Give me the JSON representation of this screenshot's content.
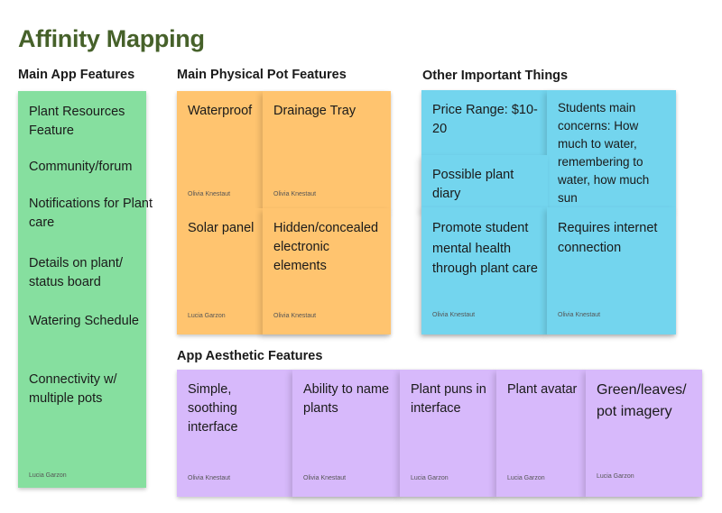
{
  "title": "Affinity Mapping",
  "sections": {
    "main_app": "Main App Features",
    "physical_pot": "Main Physical Pot Features",
    "other": "Other Important Things",
    "aesthetic": "App Aesthetic Features"
  },
  "main_app_note": {
    "items": [
      "Plant Resources Feature",
      "Community/forum",
      "Notifications for Plant care",
      "Details on plant/ status board",
      "Watering Schedule",
      "Connectivity w/ multiple pots"
    ],
    "author": "Lucia Garzon"
  },
  "physical_pot_notes": [
    {
      "text": "Waterproof",
      "author": "Olivia Knestaut"
    },
    {
      "text": "Drainage Tray",
      "author": "Olivia Knestaut"
    },
    {
      "text": "Solar panel",
      "author": "Lucia Garzon"
    },
    {
      "text": "Hidden/concealed electronic elements",
      "author": "Olivia Knestaut"
    }
  ],
  "other_notes": [
    {
      "text": "Price Range: $10-20",
      "author": ""
    },
    {
      "text": "Students main concerns: How much to water, remembering to water, how much sun",
      "author": ""
    },
    {
      "text": "Possible plant diary",
      "author": ""
    },
    {
      "text": "Promote student mental health through plant care",
      "author": "Olivia Knestaut"
    },
    {
      "text": "Requires internet connection",
      "author": "Olivia Knestaut"
    }
  ],
  "aesthetic_notes": [
    {
      "text": "Simple, soothing interface",
      "author": "Olivia Knestaut"
    },
    {
      "text": "Ability to name plants",
      "author": "Olivia Knestaut"
    },
    {
      "text": "Plant puns in interface",
      "author": "Lucia Garzon"
    },
    {
      "text": "Plant avatar",
      "author": "Lucia Garzon"
    },
    {
      "text": "Green/leaves/ pot imagery",
      "author": "Lucia Garzon"
    }
  ],
  "colors": {
    "title": "#46612a",
    "green_note": "#86df9f",
    "orange_note": "#ffc46f",
    "blue_note": "#73d5ee",
    "purple_note": "#d7b9fb"
  }
}
